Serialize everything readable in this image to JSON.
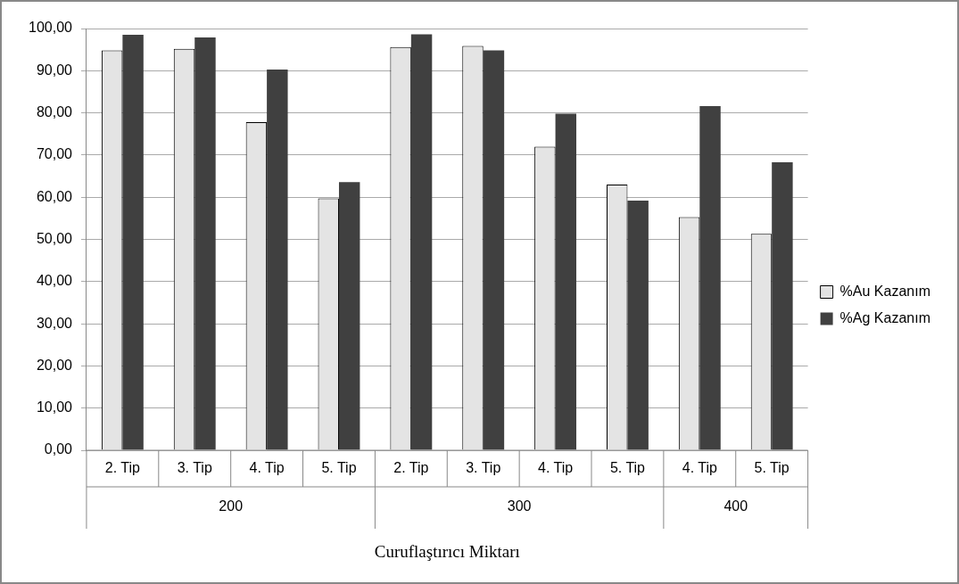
{
  "chart_data": {
    "type": "bar",
    "xlabel": "Curuflaştırıcı Miktarı",
    "categories": [
      "2. Tip",
      "3. Tip",
      "4. Tip",
      "5. Tip",
      "2. Tip",
      "3. Tip",
      "4. Tip",
      "5. Tip",
      "4. Tip",
      "5. Tip"
    ],
    "annotations": [
      "200",
      "300",
      "400"
    ],
    "series": [
      {
        "name": "%Au Kazanım",
        "color": "#e4e4e4",
        "values": [
          94.8,
          95.2,
          77.8,
          59.7,
          95.6,
          95.9,
          72.0,
          63.0,
          55.3,
          51.3
        ]
      },
      {
        "name": "%Ag Kazanım",
        "color": "#404040",
        "values": [
          98.5,
          97.9,
          90.3,
          63.6,
          98.6,
          94.8,
          79.8,
          59.2,
          81.6,
          68.3
        ]
      }
    ],
    "ylim": [
      0,
      100
    ],
    "yticks": [
      {
        "value": 0,
        "label": "0,00"
      },
      {
        "value": 10,
        "label": "10,00"
      },
      {
        "value": 20,
        "label": "20,00"
      },
      {
        "value": 30,
        "label": "30,00"
      },
      {
        "value": 40,
        "label": "40,00"
      },
      {
        "value": 50,
        "label": "50,00"
      },
      {
        "value": 60,
        "label": "60,00"
      },
      {
        "value": 70,
        "label": "70,00"
      },
      {
        "value": 80,
        "label": "80,00"
      },
      {
        "value": 90,
        "label": "90,00"
      },
      {
        "value": 100,
        "label": "100,00"
      }
    ],
    "grid": "y",
    "legend": "right"
  }
}
